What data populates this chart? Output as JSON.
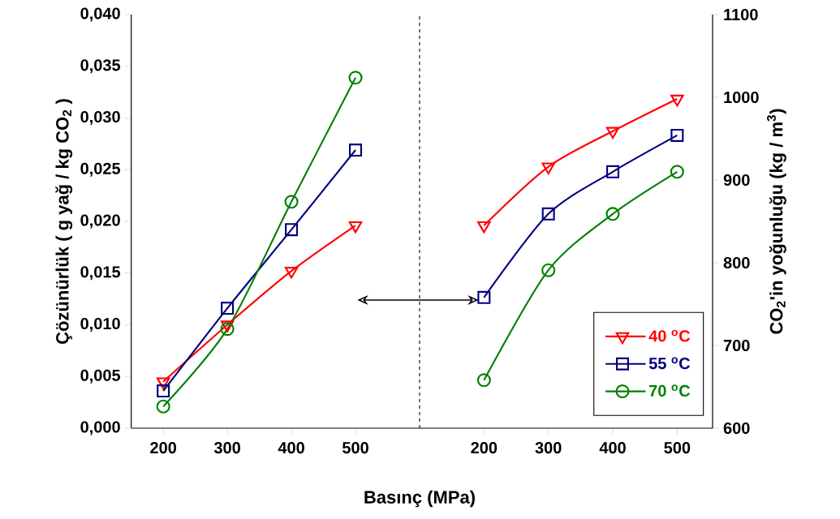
{
  "chart_data": [
    {
      "type": "line",
      "xlabel": "Basınç (MPa)",
      "ylabel": "Çözünürlük ( g yağ / kg CO$_{2}$ )",
      "x": [
        200,
        300,
        400,
        500
      ],
      "xlim": [
        150,
        600
      ],
      "xticks": [
        200,
        300,
        400,
        500
      ],
      "ylim": [
        0,
        0.04
      ],
      "yticks": [
        {
          "value": 0,
          "label": "0,000"
        },
        {
          "value": 0.005,
          "label": "0,005"
        },
        {
          "value": 0.01,
          "label": "0,010"
        },
        {
          "value": 0.015,
          "label": "0,015"
        },
        {
          "value": 0.02,
          "label": "0,020"
        },
        {
          "value": 0.025,
          "label": "0,025"
        },
        {
          "value": 0.03,
          "label": "0,030"
        },
        {
          "value": 0.035,
          "label": "0,035"
        },
        {
          "value": 0.04,
          "label": "0,040"
        }
      ],
      "series": [
        {
          "color": "#ff0000",
          "marker": "triangle",
          "values": [
            0.0045,
            0.01,
            0.0152,
            0.0196
          ]
        },
        {
          "color": "#000080",
          "marker": "square",
          "values": [
            0.0036,
            0.0116,
            0.0192,
            0.0269
          ]
        },
        {
          "color": "#008000",
          "marker": "circle",
          "values": [
            0.0021,
            0.0096,
            0.0219,
            0.0339
          ]
        }
      ],
      "ref_lines": [
        {
          "axis": "x",
          "value": 600,
          "line_style": "dashed"
        }
      ],
      "grid": false,
      "legend": false
    },
    {
      "type": "line",
      "y2label": "CO$_{2}$'in yoğunluğu (kg / m$^{3}$)",
      "x": [
        200,
        300,
        400,
        500
      ],
      "xlim": [
        100,
        555
      ],
      "xticks": [
        200,
        300,
        400,
        500
      ],
      "y2lim": [
        600,
        1100
      ],
      "y2ticks": [
        600,
        700,
        800,
        900,
        1000,
        1100
      ],
      "series": [
        {
          "name": "40 $^{o}$C",
          "color": "#ff0000",
          "marker": "triangle",
          "axis": "y2",
          "values": [
            845,
            916,
            959,
            998
          ]
        },
        {
          "name": "55 $^{o}$C",
          "color": "#000080",
          "marker": "square",
          "axis": "y2",
          "values": [
            758,
            859,
            910,
            954
          ]
        },
        {
          "name": "70 $^{o}$C",
          "color": "#008000",
          "marker": "circle",
          "axis": "y2",
          "values": [
            658,
            791,
            859,
            910
          ]
        }
      ],
      "grid": false,
      "legend": "bottom right"
    }
  ]
}
